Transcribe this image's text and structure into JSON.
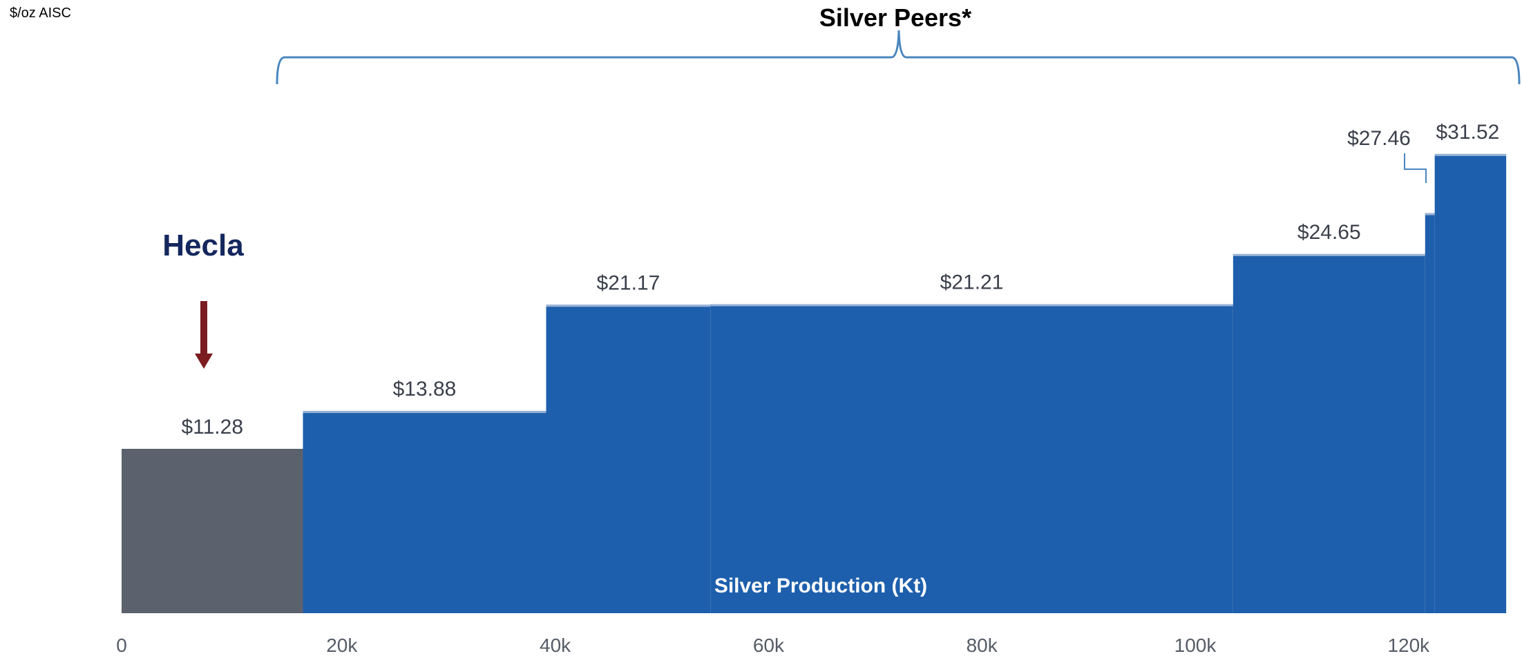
{
  "chart_data": {
    "type": "bar",
    "title": "Silver Peers*",
    "ylabel": "$/oz AISC",
    "xlabel": "Silver Production (Kt)",
    "highlight_label": "Hecla",
    "x_ticks": [
      "0",
      "20k",
      "40k",
      "60k",
      "80k",
      "100k",
      "120k"
    ],
    "xlim": [
      0,
      130
    ],
    "ylim": [
      0,
      34
    ],
    "grid": false,
    "legend": "none",
    "series": [
      {
        "x0": 0,
        "x1": 17,
        "value": 11.28,
        "label": "$11.28"
      },
      {
        "x0": 17,
        "x1": 39.8,
        "value": 13.88,
        "label": "$13.88"
      },
      {
        "x0": 39.8,
        "x1": 55.2,
        "value": 21.17,
        "label": "$21.17"
      },
      {
        "x0": 55.2,
        "x1": 104.2,
        "value": 21.21,
        "label": "$21.21"
      },
      {
        "x0": 104.2,
        "x1": 122.2,
        "value": 24.65,
        "label": "$24.65"
      },
      {
        "x0": 122.2,
        "x1": 123.1,
        "value": 27.46,
        "label": "$27.46"
      },
      {
        "x0": 123.1,
        "x1": 129.8,
        "value": 31.52,
        "label": "$31.52"
      }
    ],
    "colors": {
      "hecla_bar": "#5b626d",
      "peer_bar": "#1d5fac",
      "bar_top_line": "#9ab3d6",
      "brace": "#4a86bf",
      "hecla_text": "#14275e",
      "arrow": "#7b1c21"
    }
  }
}
